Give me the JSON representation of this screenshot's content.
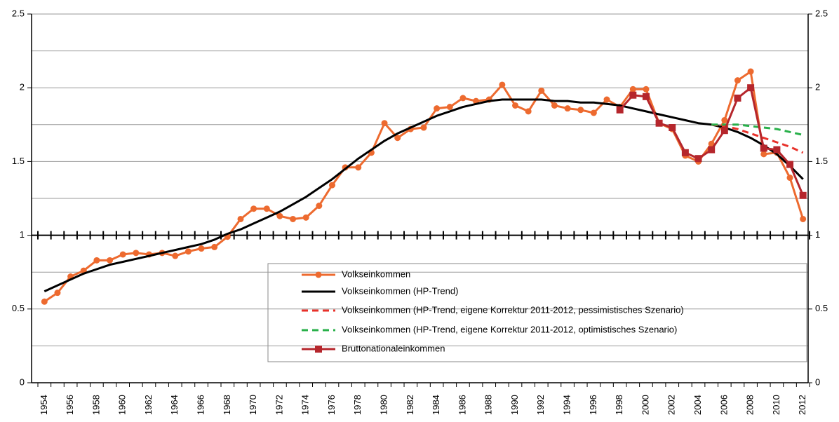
{
  "chart_data": {
    "type": "line",
    "categories": [
      "1954",
      null,
      "1956",
      null,
      "1958",
      null,
      "1960",
      null,
      "1962",
      null,
      "1964",
      null,
      "1966",
      null,
      "1968",
      null,
      "1970",
      null,
      "1972",
      null,
      "1974",
      null,
      "1976",
      null,
      "1978",
      null,
      "1980",
      null,
      "1982",
      null,
      "1984",
      null,
      "1986",
      null,
      "1988",
      null,
      "1990",
      null,
      "1992",
      null,
      "1994",
      null,
      "1996",
      null,
      "1998",
      null,
      "2000",
      null,
      "2002",
      null,
      "2004",
      null,
      "2006",
      null,
      "2008",
      null,
      "2010",
      null,
      "2012"
    ],
    "ylim": [
      0,
      2.5
    ],
    "yticks": [
      0,
      0.5,
      1,
      1.5,
      2,
      2.5
    ],
    "minor_yticks": [
      0.25,
      0.75,
      1.25,
      1.75,
      2.25
    ],
    "y2lim": [
      0,
      2.5
    ],
    "y2ticks": [
      0,
      0.5,
      1,
      1.5,
      2,
      2.5
    ],
    "grid": true,
    "x_axis_crosses": 1,
    "series": [
      {
        "name": "Volkseinkommen",
        "color": "#ed6a2f",
        "marker": "circle",
        "dashed": false,
        "values": [
          0.55,
          0.61,
          0.72,
          0.76,
          0.83,
          0.83,
          0.87,
          0.88,
          0.87,
          0.88,
          0.86,
          0.89,
          0.91,
          0.92,
          0.99,
          1.11,
          1.18,
          1.18,
          1.13,
          1.11,
          1.12,
          1.2,
          1.34,
          1.46,
          1.46,
          1.56,
          1.76,
          1.66,
          1.72,
          1.73,
          1.86,
          1.87,
          1.93,
          1.91,
          1.92,
          2.02,
          1.88,
          1.84,
          1.98,
          1.88,
          1.86,
          1.85,
          1.83,
          1.92,
          1.87,
          1.99,
          1.99,
          1.76,
          1.72,
          1.54,
          1.5,
          1.62,
          1.78,
          2.05,
          2.11,
          1.55,
          1.56,
          1.39,
          1.11
        ]
      },
      {
        "name": "Volkseinkommen (HP-Trend)",
        "color": "#000000",
        "marker": null,
        "dashed": false,
        "values": [
          0.62,
          0.66,
          0.7,
          0.74,
          0.77,
          0.8,
          0.82,
          0.84,
          0.86,
          0.88,
          0.9,
          0.92,
          0.94,
          0.97,
          1.01,
          1.04,
          1.08,
          1.12,
          1.16,
          1.21,
          1.26,
          1.32,
          1.38,
          1.45,
          1.52,
          1.58,
          1.64,
          1.69,
          1.73,
          1.77,
          1.81,
          1.84,
          1.87,
          1.89,
          1.91,
          1.92,
          1.92,
          1.92,
          1.92,
          1.91,
          1.91,
          1.9,
          1.9,
          1.89,
          1.88,
          1.86,
          1.84,
          1.82,
          1.8,
          1.78,
          1.76,
          1.75,
          1.73,
          1.7,
          1.66,
          1.61,
          1.55,
          1.47,
          1.38
        ]
      },
      {
        "name": "Volkseinkommen (HP-Trend, eigene Korrektur 2011-2012, pessimistisches Szenario)",
        "color": "#e8312a",
        "marker": null,
        "dashed": true,
        "values": [
          null,
          null,
          null,
          null,
          null,
          null,
          null,
          null,
          null,
          null,
          null,
          null,
          null,
          null,
          null,
          null,
          null,
          null,
          null,
          null,
          null,
          null,
          null,
          null,
          null,
          null,
          null,
          null,
          null,
          null,
          null,
          null,
          null,
          null,
          null,
          null,
          null,
          null,
          null,
          null,
          null,
          null,
          null,
          null,
          null,
          null,
          null,
          null,
          null,
          null,
          null,
          1.75,
          1.74,
          1.72,
          1.69,
          1.66,
          1.63,
          1.6,
          1.56
        ]
      },
      {
        "name": "Volkseinkommen (HP-Trend, eigene Korrektur 2011-2012, optimistisches Szenario)",
        "color": "#28b04a",
        "marker": null,
        "dashed": true,
        "values": [
          null,
          null,
          null,
          null,
          null,
          null,
          null,
          null,
          null,
          null,
          null,
          null,
          null,
          null,
          null,
          null,
          null,
          null,
          null,
          null,
          null,
          null,
          null,
          null,
          null,
          null,
          null,
          null,
          null,
          null,
          null,
          null,
          null,
          null,
          null,
          null,
          null,
          null,
          null,
          null,
          null,
          null,
          null,
          null,
          null,
          null,
          null,
          null,
          null,
          null,
          null,
          1.75,
          1.75,
          1.75,
          1.74,
          1.73,
          1.72,
          1.7,
          1.68
        ]
      },
      {
        "name": "Bruttonationaleinkommen",
        "color": "#b5262c",
        "marker": "square",
        "dashed": false,
        "values": [
          null,
          null,
          null,
          null,
          null,
          null,
          null,
          null,
          null,
          null,
          null,
          null,
          null,
          null,
          null,
          null,
          null,
          null,
          null,
          null,
          null,
          null,
          null,
          null,
          null,
          null,
          null,
          null,
          null,
          null,
          null,
          null,
          null,
          null,
          null,
          null,
          null,
          null,
          null,
          null,
          null,
          null,
          null,
          null,
          1.85,
          1.95,
          1.94,
          1.76,
          1.73,
          1.56,
          1.52,
          1.58,
          1.71,
          1.93,
          2.0,
          1.59,
          1.58,
          1.48,
          1.27
        ]
      }
    ]
  }
}
